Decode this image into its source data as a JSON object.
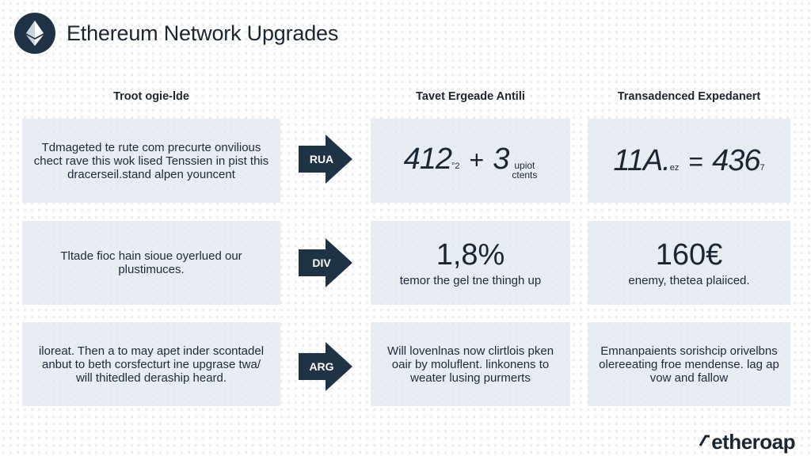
{
  "header": {
    "title": "Ethereum Network Upgrades",
    "logo_icon": "ethereum-diamond-icon"
  },
  "columns": [
    {
      "heading": "Troot ogie-lde"
    },
    {
      "heading": "Tavet Ergeade Antili"
    },
    {
      "heading": "Transadenced Expedanert"
    }
  ],
  "rows": [
    {
      "description": "Tdmageted te rute com precurte onvilious chect rave this wok lised Tenssien in pist this dracerseil.stand alpen youncent",
      "arrow_label": "RUA",
      "middle": {
        "left": "412",
        "left_sup": "°2",
        "op": "+",
        "right": "3",
        "right_note_1": "upiot",
        "right_note_2": "ctents"
      },
      "right": {
        "left": "11A.",
        "left_sup": "ez",
        "op": "=",
        "right": "436",
        "right_sup": "7"
      }
    },
    {
      "description": "Tltade fioc hain sioue oyerlued our plustimuces.",
      "arrow_label": "DIV",
      "middle": {
        "value": "1,8%",
        "caption": "temor the gel tne thingh up"
      },
      "right": {
        "value": "160€",
        "caption": "enemy, thetea plaiiced."
      }
    },
    {
      "description": "iloreat. Then a to may apet inder scontadel anbut to beth corsfecturt ine upgrase twa/ will thitedled deraship heard.",
      "arrow_label": "ARG",
      "middle": {
        "text": "Will lovenlnas now clirtlois pken oair by moluflent. linkonens to weater lusing purmerts"
      },
      "right": {
        "text": "Emnanpaients sorishcip orivelbns olereeating froe mendense. lag ap vow and fallow"
      }
    }
  ],
  "brand": {
    "text": "etheroap"
  },
  "colors": {
    "navy": "#1f3347",
    "card": "#e1e7ef",
    "text": "#1b2633"
  }
}
